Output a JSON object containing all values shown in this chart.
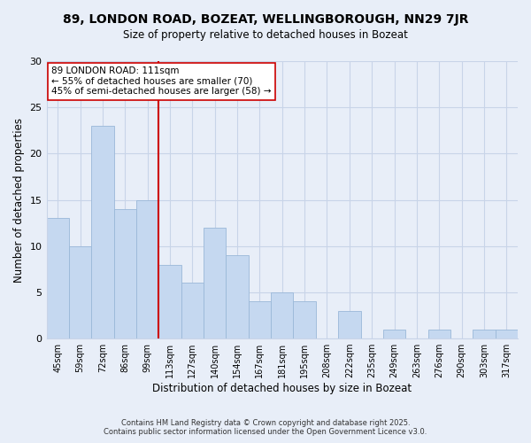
{
  "title1": "89, LONDON ROAD, BOZEAT, WELLINGBOROUGH, NN29 7JR",
  "title2": "Size of property relative to detached houses in Bozeat",
  "xlabel": "Distribution of detached houses by size in Bozeat",
  "ylabel": "Number of detached properties",
  "categories": [
    "45sqm",
    "59sqm",
    "72sqm",
    "86sqm",
    "99sqm",
    "113sqm",
    "127sqm",
    "140sqm",
    "154sqm",
    "167sqm",
    "181sqm",
    "195sqm",
    "208sqm",
    "222sqm",
    "235sqm",
    "249sqm",
    "263sqm",
    "276sqm",
    "290sqm",
    "303sqm",
    "317sqm"
  ],
  "values": [
    13,
    10,
    23,
    14,
    15,
    8,
    6,
    12,
    9,
    4,
    5,
    4,
    0,
    3,
    0,
    1,
    0,
    1,
    0,
    1,
    1
  ],
  "bar_color": "#c5d8f0",
  "bar_edge_color": "#9ab8d8",
  "vline_x": 4.5,
  "vline_color": "#cc0000",
  "annotation_title": "89 LONDON ROAD: 111sqm",
  "annotation_line1": "← 55% of detached houses are smaller (70)",
  "annotation_line2": "45% of semi-detached houses are larger (58) →",
  "box_facecolor": "white",
  "box_edgecolor": "#cc0000",
  "ylim": [
    0,
    30
  ],
  "yticks": [
    0,
    5,
    10,
    15,
    20,
    25,
    30
  ],
  "background_color": "#e8eef8",
  "grid_color": "#c8d4e8",
  "footer1": "Contains HM Land Registry data © Crown copyright and database right 2025.",
  "footer2": "Contains public sector information licensed under the Open Government Licence v3.0."
}
